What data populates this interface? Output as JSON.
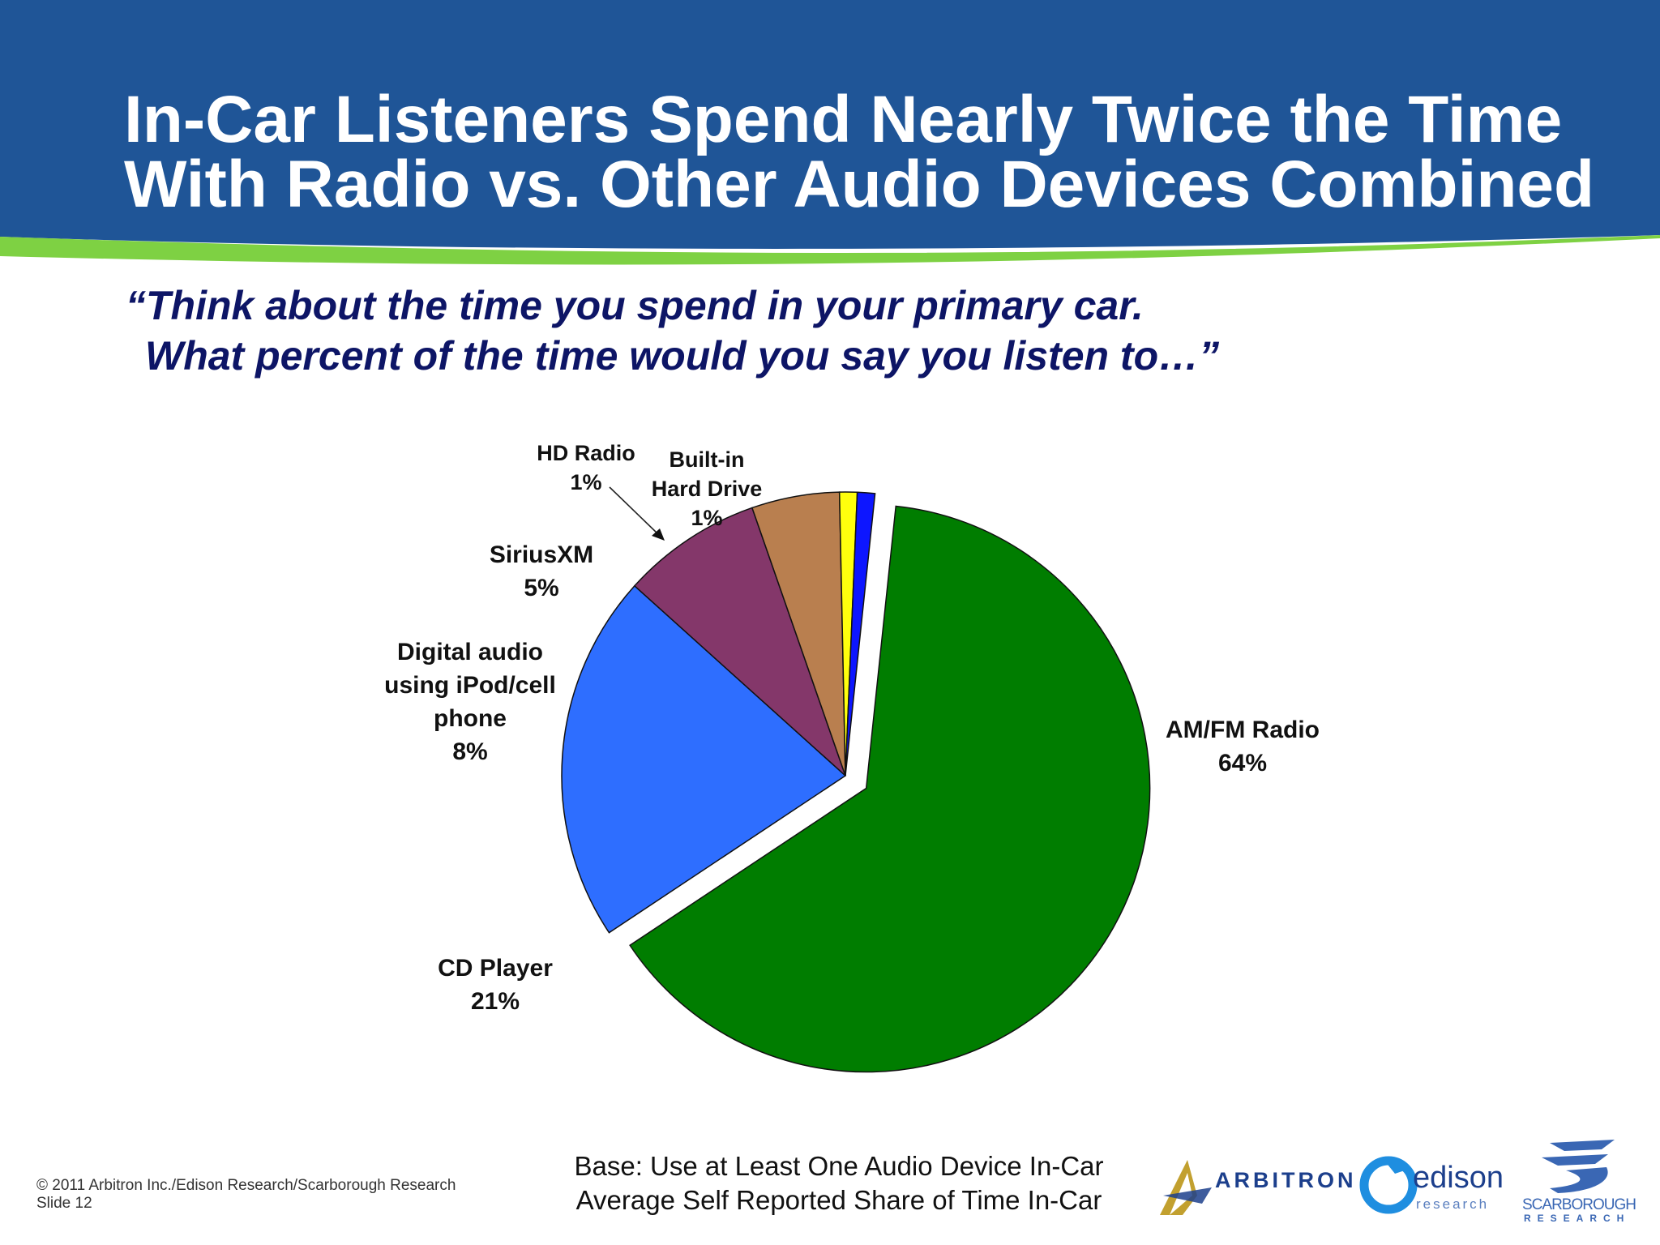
{
  "slide": {
    "title_lines": [
      "In-Car Listeners Spend Nearly Twice the Time",
      "With Radio vs. Other Audio Devices Combined"
    ],
    "question_lines": [
      "“Think about the time you spend in your primary car.",
      "What percent of the time would you say you listen to…”"
    ],
    "base_lines": [
      "Base: Use at Least One Audio Device In-Car",
      "Average Self Reported Share of Time In-Car"
    ],
    "copyright_lines": [
      "© 2011 Arbitron Inc./Edison Research/Scarborough Research",
      "Slide 12"
    ],
    "logos": {
      "arbitron": "ARBITRON",
      "edison": "edison",
      "edison_sub": "research",
      "scarborough": "SCARBOROUGH",
      "scarborough_sub": "RESEARCH"
    },
    "colors": {
      "header_blue": "#1f5597",
      "accent_green": "#7ed143"
    }
  },
  "chart_data": {
    "type": "pie",
    "title": "",
    "slices": [
      {
        "label_lines": [
          "AM/FM Radio"
        ],
        "value": 64,
        "value_label": "64%",
        "color": "#007d00",
        "exploded": true
      },
      {
        "label_lines": [
          "CD Player"
        ],
        "value": 21,
        "value_label": "21%",
        "color": "#2e6eff",
        "exploded": false
      },
      {
        "label_lines": [
          "Digital audio",
          "using iPod/cell",
          "phone"
        ],
        "value": 8,
        "value_label": "8%",
        "color": "#84376a",
        "exploded": false
      },
      {
        "label_lines": [
          "SiriusXM"
        ],
        "value": 5,
        "value_label": "5%",
        "color": "#b97f4f",
        "exploded": false
      },
      {
        "label_lines": [
          "HD Radio"
        ],
        "value": 1,
        "value_label": "1%",
        "color": "#ffff0d",
        "exploded": false
      },
      {
        "label_lines": [
          "Built-in",
          "Hard Drive"
        ],
        "value": 1,
        "value_label": "1%",
        "color": "#0d16ff",
        "exploded": false
      }
    ],
    "legend": "none"
  }
}
